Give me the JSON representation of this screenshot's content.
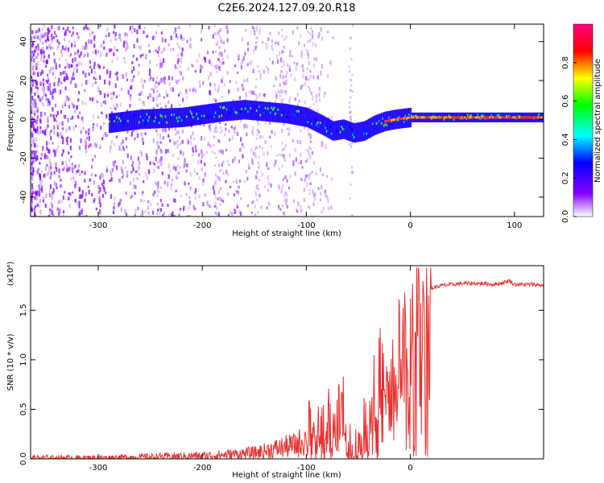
{
  "title": "C2E6.2024.127.09.20.R18",
  "chart_data": [
    {
      "type": "heatmap",
      "xlabel": "Height of straight line (km)",
      "ylabel": "Frequency (Hz)",
      "xlim": [
        -365,
        128
      ],
      "ylim": [
        -50,
        49
      ],
      "xticks": [
        -300,
        -200,
        -100,
        0,
        100
      ],
      "yticks": [
        -40,
        -20,
        0,
        20,
        40
      ],
      "colorbar": {
        "label": "Normalized spectral amplitude",
        "range": [
          0,
          1
        ],
        "ticks": [
          "0.0",
          "0.2",
          "0.4",
          "0.6",
          "0.8"
        ],
        "colors": [
          "#ffffff",
          "#8800ff",
          "#0000ff",
          "#00ffff",
          "#00ff00",
          "#ffff00",
          "#ff0000",
          "#ff0080"
        ]
      },
      "ridge": {
        "x": [
          -290,
          -260,
          -220,
          -180,
          -160,
          -140,
          -120,
          -100,
          -85,
          -75,
          -65,
          -55,
          -45,
          -35,
          -25,
          -15,
          0,
          50,
          100,
          128
        ],
        "y": [
          -2,
          0,
          1,
          4,
          5,
          4,
          3,
          1,
          -3,
          -6,
          -5,
          -7,
          -6,
          -3,
          -1,
          0,
          1,
          1,
          1,
          1
        ]
      }
    },
    {
      "type": "line",
      "xlabel": "Height of straight line (km)",
      "ylabel": "SNR (10 * v/v)",
      "yscale_label": "(x10⁴)",
      "xlim": [
        -365,
        128
      ],
      "ylim": [
        0,
        1.95
      ],
      "xticks": [
        -300,
        -200,
        -100,
        0
      ],
      "yticks": [
        "0.0",
        "0.5",
        "1.0",
        "1.5"
      ],
      "series": [
        {
          "color": "#e8302e",
          "x": [
            -365,
            -300,
            -250,
            -200,
            -180,
            -150,
            -130,
            -110,
            -100,
            -90,
            -80,
            -70,
            -65,
            -60,
            -55,
            -50,
            -45,
            -40,
            -35,
            -30,
            -25,
            -20,
            -15,
            -10,
            -5,
            0,
            5,
            10,
            15,
            20,
            30,
            40,
            50,
            60,
            70,
            80,
            90,
            95,
            100,
            110,
            120,
            128
          ],
          "y": [
            0.01,
            0.01,
            0.02,
            0.03,
            0.04,
            0.06,
            0.1,
            0.14,
            0.2,
            0.28,
            0.3,
            0.35,
            0.45,
            0.12,
            0.03,
            0.08,
            0.2,
            0.45,
            0.65,
            0.85,
            0.75,
            0.55,
            0.95,
            1.1,
            1.2,
            1.25,
            1.4,
            1.55,
            1.65,
            1.72,
            1.75,
            1.76,
            1.77,
            1.77,
            1.77,
            1.76,
            1.78,
            1.8,
            1.76,
            1.76,
            1.76,
            1.75
          ]
        }
      ]
    }
  ]
}
